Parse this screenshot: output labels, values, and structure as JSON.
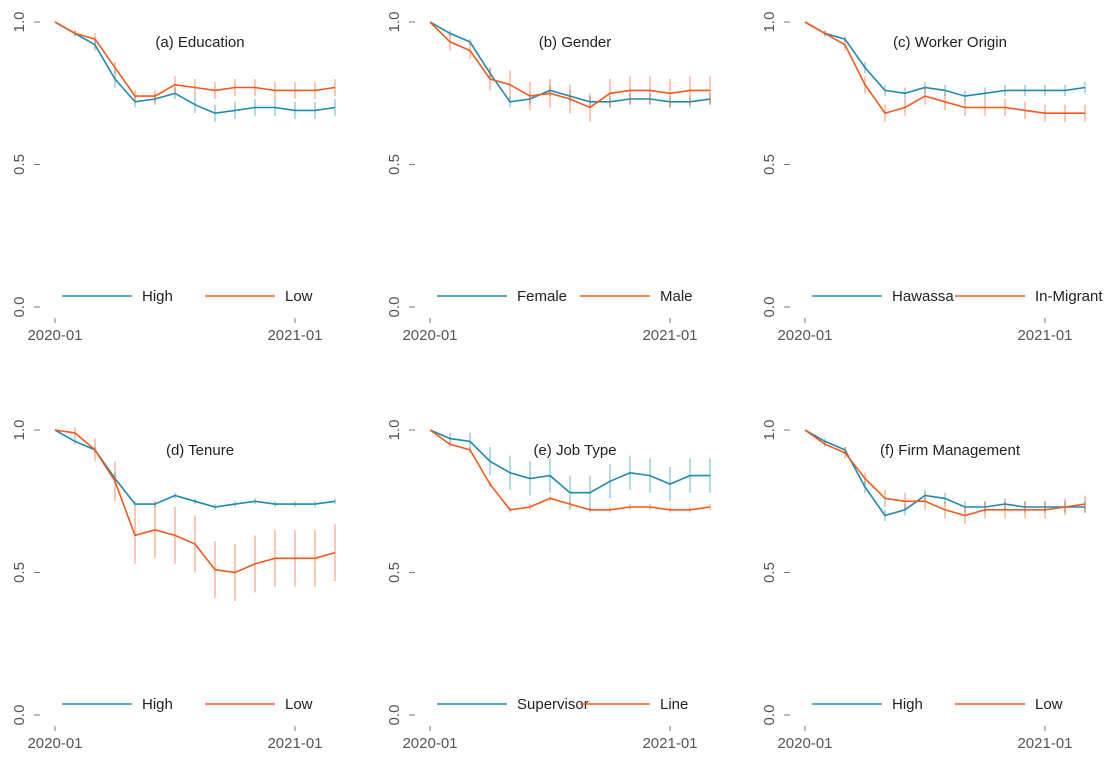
{
  "chart_data": [
    {
      "type": "line",
      "title": "(a) Education",
      "x": [
        "2020-01",
        "2020-02",
        "2020-03",
        "2020-04",
        "2020-05",
        "2020-06",
        "2020-07",
        "2020-08",
        "2020-09",
        "2020-10",
        "2020-11",
        "2020-12",
        "2021-01",
        "2021-02",
        "2021-03"
      ],
      "xticks": [
        "2020-01",
        "2021-01"
      ],
      "ylim": [
        0,
        1
      ],
      "yticks": [
        {
          "value": 0,
          "label": "0.0"
        },
        {
          "value": 0.5,
          "label": "0.5"
        },
        {
          "value": 1,
          "label": "1.0"
        }
      ],
      "series": [
        {
          "name": "High",
          "color": "#1f8ab0",
          "values": [
            1.0,
            0.96,
            0.92,
            0.8,
            0.72,
            0.73,
            0.75,
            0.71,
            0.68,
            0.69,
            0.7,
            0.7,
            0.69,
            0.69,
            0.7
          ],
          "errors": [
            0,
            0.01,
            0.02,
            0.03,
            0.02,
            0.02,
            0.02,
            0.03,
            0.03,
            0.03,
            0.03,
            0.03,
            0.03,
            0.03,
            0.03
          ]
        },
        {
          "name": "Low",
          "color": "#f05a1e",
          "values": [
            1.0,
            0.96,
            0.94,
            0.84,
            0.74,
            0.74,
            0.78,
            0.77,
            0.76,
            0.77,
            0.77,
            0.76,
            0.76,
            0.76,
            0.77
          ],
          "errors": [
            0,
            0.01,
            0.02,
            0.02,
            0.02,
            0.02,
            0.03,
            0.03,
            0.03,
            0.03,
            0.03,
            0.03,
            0.03,
            0.03,
            0.03
          ]
        }
      ]
    },
    {
      "type": "line",
      "title": "(b) Gender",
      "x": [
        "2020-01",
        "2020-02",
        "2020-03",
        "2020-04",
        "2020-05",
        "2020-06",
        "2020-07",
        "2020-08",
        "2020-09",
        "2020-10",
        "2020-11",
        "2020-12",
        "2021-01",
        "2021-02",
        "2021-03"
      ],
      "xticks": [
        "2020-01",
        "2021-01"
      ],
      "ylim": [
        0,
        1
      ],
      "yticks": [
        {
          "value": 0,
          "label": "0.0"
        },
        {
          "value": 0.5,
          "label": "0.5"
        },
        {
          "value": 1,
          "label": "1.0"
        }
      ],
      "series": [
        {
          "name": "Female",
          "color": "#1f8ab0",
          "values": [
            1.0,
            0.96,
            0.93,
            0.82,
            0.72,
            0.73,
            0.76,
            0.74,
            0.72,
            0.72,
            0.73,
            0.73,
            0.72,
            0.72,
            0.73
          ],
          "errors": [
            0,
            0.01,
            0.01,
            0.02,
            0.02,
            0.02,
            0.02,
            0.02,
            0.02,
            0.02,
            0.02,
            0.02,
            0.02,
            0.02,
            0.02
          ]
        },
        {
          "name": "Male",
          "color": "#f05a1e",
          "values": [
            1.0,
            0.93,
            0.9,
            0.8,
            0.78,
            0.74,
            0.75,
            0.73,
            0.7,
            0.75,
            0.76,
            0.76,
            0.75,
            0.76,
            0.76
          ],
          "errors": [
            0,
            0.03,
            0.03,
            0.04,
            0.05,
            0.05,
            0.05,
            0.05,
            0.05,
            0.05,
            0.05,
            0.05,
            0.05,
            0.05,
            0.05
          ]
        }
      ]
    },
    {
      "type": "line",
      "title": "(c) Worker Origin",
      "x": [
        "2020-01",
        "2020-02",
        "2020-03",
        "2020-04",
        "2020-05",
        "2020-06",
        "2020-07",
        "2020-08",
        "2020-09",
        "2020-10",
        "2020-11",
        "2020-12",
        "2021-01",
        "2021-02",
        "2021-03"
      ],
      "xticks": [
        "2020-01",
        "2021-01"
      ],
      "ylim": [
        0,
        1
      ],
      "yticks": [
        {
          "value": 0,
          "label": "0.0"
        },
        {
          "value": 0.5,
          "label": "0.5"
        },
        {
          "value": 1,
          "label": "1.0"
        }
      ],
      "series": [
        {
          "name": "Hawassa",
          "color": "#1f8ab0",
          "values": [
            1.0,
            0.96,
            0.94,
            0.84,
            0.76,
            0.75,
            0.77,
            0.76,
            0.74,
            0.75,
            0.76,
            0.76,
            0.76,
            0.76,
            0.77
          ],
          "errors": [
            0,
            0.01,
            0.01,
            0.02,
            0.02,
            0.02,
            0.02,
            0.02,
            0.02,
            0.02,
            0.02,
            0.02,
            0.02,
            0.02,
            0.02
          ]
        },
        {
          "name": "In-Migrant",
          "color": "#f05a1e",
          "values": [
            1.0,
            0.96,
            0.92,
            0.78,
            0.68,
            0.7,
            0.74,
            0.72,
            0.7,
            0.7,
            0.7,
            0.69,
            0.68,
            0.68,
            0.68
          ],
          "errors": [
            0,
            0.01,
            0.02,
            0.03,
            0.03,
            0.03,
            0.03,
            0.03,
            0.03,
            0.03,
            0.03,
            0.03,
            0.03,
            0.03,
            0.03
          ]
        }
      ]
    },
    {
      "type": "line",
      "title": "(d) Tenure",
      "x": [
        "2020-01",
        "2020-02",
        "2020-03",
        "2020-04",
        "2020-05",
        "2020-06",
        "2020-07",
        "2020-08",
        "2020-09",
        "2020-10",
        "2020-11",
        "2020-12",
        "2021-01",
        "2021-02",
        "2021-03"
      ],
      "xticks": [
        "2020-01",
        "2021-01"
      ],
      "ylim": [
        0,
        1
      ],
      "yticks": [
        {
          "value": 0,
          "label": "0.0"
        },
        {
          "value": 0.5,
          "label": "0.5"
        },
        {
          "value": 1,
          "label": "1.0"
        }
      ],
      "series": [
        {
          "name": "High",
          "color": "#1f8ab0",
          "values": [
            1.0,
            0.96,
            0.93,
            0.83,
            0.74,
            0.74,
            0.77,
            0.75,
            0.73,
            0.74,
            0.75,
            0.74,
            0.74,
            0.74,
            0.75
          ],
          "errors": [
            0,
            0.01,
            0.01,
            0.02,
            0.01,
            0.01,
            0.01,
            0.01,
            0.01,
            0.01,
            0.01,
            0.01,
            0.01,
            0.01,
            0.01
          ]
        },
        {
          "name": "Low",
          "color": "#f05a1e",
          "values": [
            1.0,
            0.99,
            0.93,
            0.82,
            0.63,
            0.65,
            0.63,
            0.6,
            0.51,
            0.5,
            0.53,
            0.55,
            0.55,
            0.55,
            0.57
          ],
          "errors": [
            0,
            0.02,
            0.04,
            0.07,
            0.1,
            0.1,
            0.1,
            0.1,
            0.1,
            0.1,
            0.1,
            0.1,
            0.1,
            0.1,
            0.1
          ]
        }
      ]
    },
    {
      "type": "line",
      "title": "(e) Job Type",
      "x": [
        "2020-01",
        "2020-02",
        "2020-03",
        "2020-04",
        "2020-05",
        "2020-06",
        "2020-07",
        "2020-08",
        "2020-09",
        "2020-10",
        "2020-11",
        "2020-12",
        "2021-01",
        "2021-02",
        "2021-03"
      ],
      "xticks": [
        "2020-01",
        "2021-01"
      ],
      "ylim": [
        0,
        1
      ],
      "yticks": [
        {
          "value": 0,
          "label": "0.0"
        },
        {
          "value": 0.5,
          "label": "0.5"
        },
        {
          "value": 1,
          "label": "1.0"
        }
      ],
      "series": [
        {
          "name": "Supervisor",
          "color": "#1f8ab0",
          "values": [
            1.0,
            0.97,
            0.96,
            0.89,
            0.85,
            0.83,
            0.84,
            0.78,
            0.78,
            0.82,
            0.85,
            0.84,
            0.81,
            0.84,
            0.84
          ],
          "errors": [
            0,
            0.02,
            0.03,
            0.05,
            0.06,
            0.06,
            0.06,
            0.06,
            0.06,
            0.06,
            0.06,
            0.06,
            0.06,
            0.06,
            0.06
          ]
        },
        {
          "name": "Line",
          "color": "#f05a1e",
          "values": [
            1.0,
            0.95,
            0.93,
            0.81,
            0.72,
            0.73,
            0.76,
            0.74,
            0.72,
            0.72,
            0.73,
            0.73,
            0.72,
            0.72,
            0.73
          ],
          "errors": [
            0,
            0.01,
            0.01,
            0.01,
            0.01,
            0.01,
            0.01,
            0.01,
            0.01,
            0.01,
            0.01,
            0.01,
            0.01,
            0.01,
            0.01
          ]
        }
      ]
    },
    {
      "type": "line",
      "title": "(f) Firm Management",
      "x": [
        "2020-01",
        "2020-02",
        "2020-03",
        "2020-04",
        "2020-05",
        "2020-06",
        "2020-07",
        "2020-08",
        "2020-09",
        "2020-10",
        "2020-11",
        "2020-12",
        "2021-01",
        "2021-02",
        "2021-03"
      ],
      "xticks": [
        "2020-01",
        "2021-01"
      ],
      "ylim": [
        0,
        1
      ],
      "yticks": [
        {
          "value": 0,
          "label": "0.0"
        },
        {
          "value": 0.5,
          "label": "0.5"
        },
        {
          "value": 1,
          "label": "1.0"
        }
      ],
      "series": [
        {
          "name": "High",
          "color": "#1f8ab0",
          "values": [
            1.0,
            0.96,
            0.93,
            0.8,
            0.7,
            0.72,
            0.77,
            0.76,
            0.73,
            0.73,
            0.74,
            0.73,
            0.73,
            0.73,
            0.73
          ],
          "errors": [
            0,
            0.01,
            0.01,
            0.02,
            0.02,
            0.02,
            0.02,
            0.02,
            0.02,
            0.02,
            0.02,
            0.02,
            0.02,
            0.02,
            0.02
          ]
        },
        {
          "name": "Low",
          "color": "#f05a1e",
          "values": [
            1.0,
            0.95,
            0.92,
            0.83,
            0.76,
            0.75,
            0.75,
            0.72,
            0.7,
            0.72,
            0.72,
            0.72,
            0.72,
            0.73,
            0.74
          ],
          "errors": [
            0,
            0.01,
            0.02,
            0.02,
            0.03,
            0.03,
            0.03,
            0.03,
            0.03,
            0.03,
            0.03,
            0.03,
            0.03,
            0.03,
            0.03
          ]
        }
      ]
    }
  ]
}
